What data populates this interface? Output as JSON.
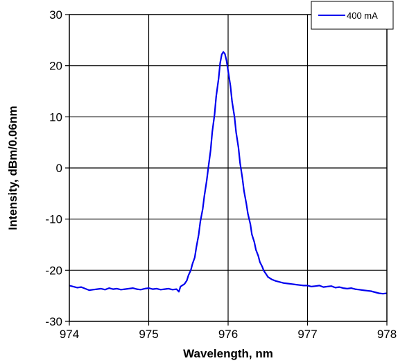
{
  "chart_data": {
    "type": "line",
    "xlabel": "Wavelength, nm",
    "ylabel": "Intensity, dBm/0.06nm",
    "xlim": [
      974,
      978
    ],
    "ylim": [
      -30,
      30
    ],
    "x_ticks": [
      974,
      975,
      976,
      977,
      978
    ],
    "y_ticks": [
      -30,
      -20,
      -10,
      0,
      10,
      20,
      30
    ],
    "x_tick_labels": [
      "974",
      "975",
      "976",
      "977",
      "978"
    ],
    "y_tick_labels": [
      "-30",
      "-20",
      "-10",
      "0",
      "10",
      "20",
      "30"
    ],
    "grid": true,
    "legend_position": "top-right",
    "series": [
      {
        "name": "400 mA",
        "color": "#0000ee",
        "points": [
          [
            974.0,
            -23.0
          ],
          [
            974.05,
            -23.2
          ],
          [
            974.1,
            -23.4
          ],
          [
            974.15,
            -23.3
          ],
          [
            974.2,
            -23.6
          ],
          [
            974.25,
            -23.9
          ],
          [
            974.3,
            -23.8
          ],
          [
            974.35,
            -23.7
          ],
          [
            974.4,
            -23.6
          ],
          [
            974.45,
            -23.8
          ],
          [
            974.5,
            -23.5
          ],
          [
            974.55,
            -23.7
          ],
          [
            974.6,
            -23.6
          ],
          [
            974.65,
            -23.8
          ],
          [
            974.7,
            -23.7
          ],
          [
            974.75,
            -23.6
          ],
          [
            974.8,
            -23.5
          ],
          [
            974.85,
            -23.7
          ],
          [
            974.9,
            -23.8
          ],
          [
            974.95,
            -23.6
          ],
          [
            975.0,
            -23.5
          ],
          [
            975.05,
            -23.7
          ],
          [
            975.1,
            -23.6
          ],
          [
            975.15,
            -23.8
          ],
          [
            975.2,
            -23.7
          ],
          [
            975.25,
            -23.6
          ],
          [
            975.3,
            -23.8
          ],
          [
            975.35,
            -23.7
          ],
          [
            975.38,
            -24.2
          ],
          [
            975.4,
            -23.2
          ],
          [
            975.45,
            -22.7
          ],
          [
            975.48,
            -22.0
          ],
          [
            975.5,
            -21.0
          ],
          [
            975.53,
            -20.0
          ],
          [
            975.55,
            -18.8
          ],
          [
            975.58,
            -17.5
          ],
          [
            975.6,
            -15.5
          ],
          [
            975.63,
            -13.0
          ],
          [
            975.65,
            -10.5
          ],
          [
            975.68,
            -8.0
          ],
          [
            975.7,
            -5.5
          ],
          [
            975.73,
            -2.5
          ],
          [
            975.75,
            0.0
          ],
          [
            975.78,
            3.5
          ],
          [
            975.8,
            7.0
          ],
          [
            975.83,
            10.5
          ],
          [
            975.85,
            14.0
          ],
          [
            975.88,
            17.5
          ],
          [
            975.9,
            20.5
          ],
          [
            975.92,
            22.2
          ],
          [
            975.94,
            22.7
          ],
          [
            975.96,
            22.3
          ],
          [
            975.98,
            21.0
          ],
          [
            976.0,
            19.0
          ],
          [
            976.03,
            16.0
          ],
          [
            976.05,
            13.0
          ],
          [
            976.08,
            10.0
          ],
          [
            976.1,
            7.0
          ],
          [
            976.13,
            4.0
          ],
          [
            976.15,
            1.0
          ],
          [
            976.18,
            -2.0
          ],
          [
            976.2,
            -4.5
          ],
          [
            976.23,
            -7.0
          ],
          [
            976.25,
            -9.0
          ],
          [
            976.28,
            -11.0
          ],
          [
            976.3,
            -13.0
          ],
          [
            976.33,
            -14.5
          ],
          [
            976.35,
            -16.0
          ],
          [
            976.38,
            -17.2
          ],
          [
            976.4,
            -18.4
          ],
          [
            976.43,
            -19.3
          ],
          [
            976.45,
            -20.1
          ],
          [
            976.48,
            -20.8
          ],
          [
            976.5,
            -21.3
          ],
          [
            976.55,
            -21.8
          ],
          [
            976.6,
            -22.1
          ],
          [
            976.65,
            -22.3
          ],
          [
            976.7,
            -22.5
          ],
          [
            976.75,
            -22.6
          ],
          [
            976.8,
            -22.7
          ],
          [
            976.85,
            -22.8
          ],
          [
            976.9,
            -22.9
          ],
          [
            976.95,
            -23.0
          ],
          [
            977.0,
            -23.0
          ],
          [
            977.05,
            -23.2
          ],
          [
            977.1,
            -23.1
          ],
          [
            977.15,
            -23.0
          ],
          [
            977.2,
            -23.3
          ],
          [
            977.25,
            -23.2
          ],
          [
            977.3,
            -23.1
          ],
          [
            977.35,
            -23.4
          ],
          [
            977.4,
            -23.3
          ],
          [
            977.45,
            -23.5
          ],
          [
            977.5,
            -23.6
          ],
          [
            977.55,
            -23.5
          ],
          [
            977.6,
            -23.7
          ],
          [
            977.65,
            -23.8
          ],
          [
            977.7,
            -23.9
          ],
          [
            977.75,
            -24.0
          ],
          [
            977.8,
            -24.1
          ],
          [
            977.85,
            -24.3
          ],
          [
            977.9,
            -24.5
          ],
          [
            977.95,
            -24.6
          ],
          [
            978.0,
            -24.5
          ]
        ]
      }
    ]
  }
}
